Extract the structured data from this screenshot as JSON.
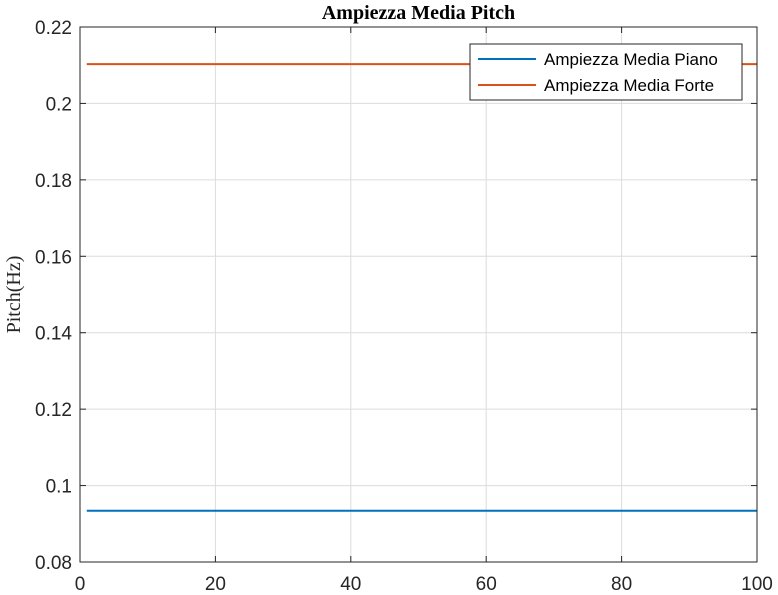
{
  "chart_data": {
    "type": "line",
    "title": "Ampiezza Media Pitch",
    "xlabel": "",
    "ylabel": "Pitch(Hz)",
    "xlim": [
      0,
      100
    ],
    "ylim": [
      0.08,
      0.22
    ],
    "xticks": [
      0,
      20,
      40,
      60,
      80,
      100
    ],
    "xtick_labels": [
      "0",
      "20",
      "40",
      "60",
      "80",
      "100"
    ],
    "yticks": [
      0.08,
      0.1,
      0.12,
      0.14,
      0.16,
      0.18,
      0.2,
      0.22
    ],
    "ytick_labels": [
      "0.08",
      "0.1",
      "0.12",
      "0.14",
      "0.16",
      "0.18",
      "0.2",
      "0.22"
    ],
    "grid": true,
    "legend_position": "top-right",
    "series": [
      {
        "name": "Ampiezza Media Piano",
        "color": "#0072BD",
        "x": [
          1,
          100
        ],
        "y": [
          0.0934,
          0.0934
        ]
      },
      {
        "name": "Ampiezza Media Forte",
        "color": "#D95319",
        "x": [
          1,
          100
        ],
        "y": [
          0.2103,
          0.2103
        ]
      }
    ]
  }
}
